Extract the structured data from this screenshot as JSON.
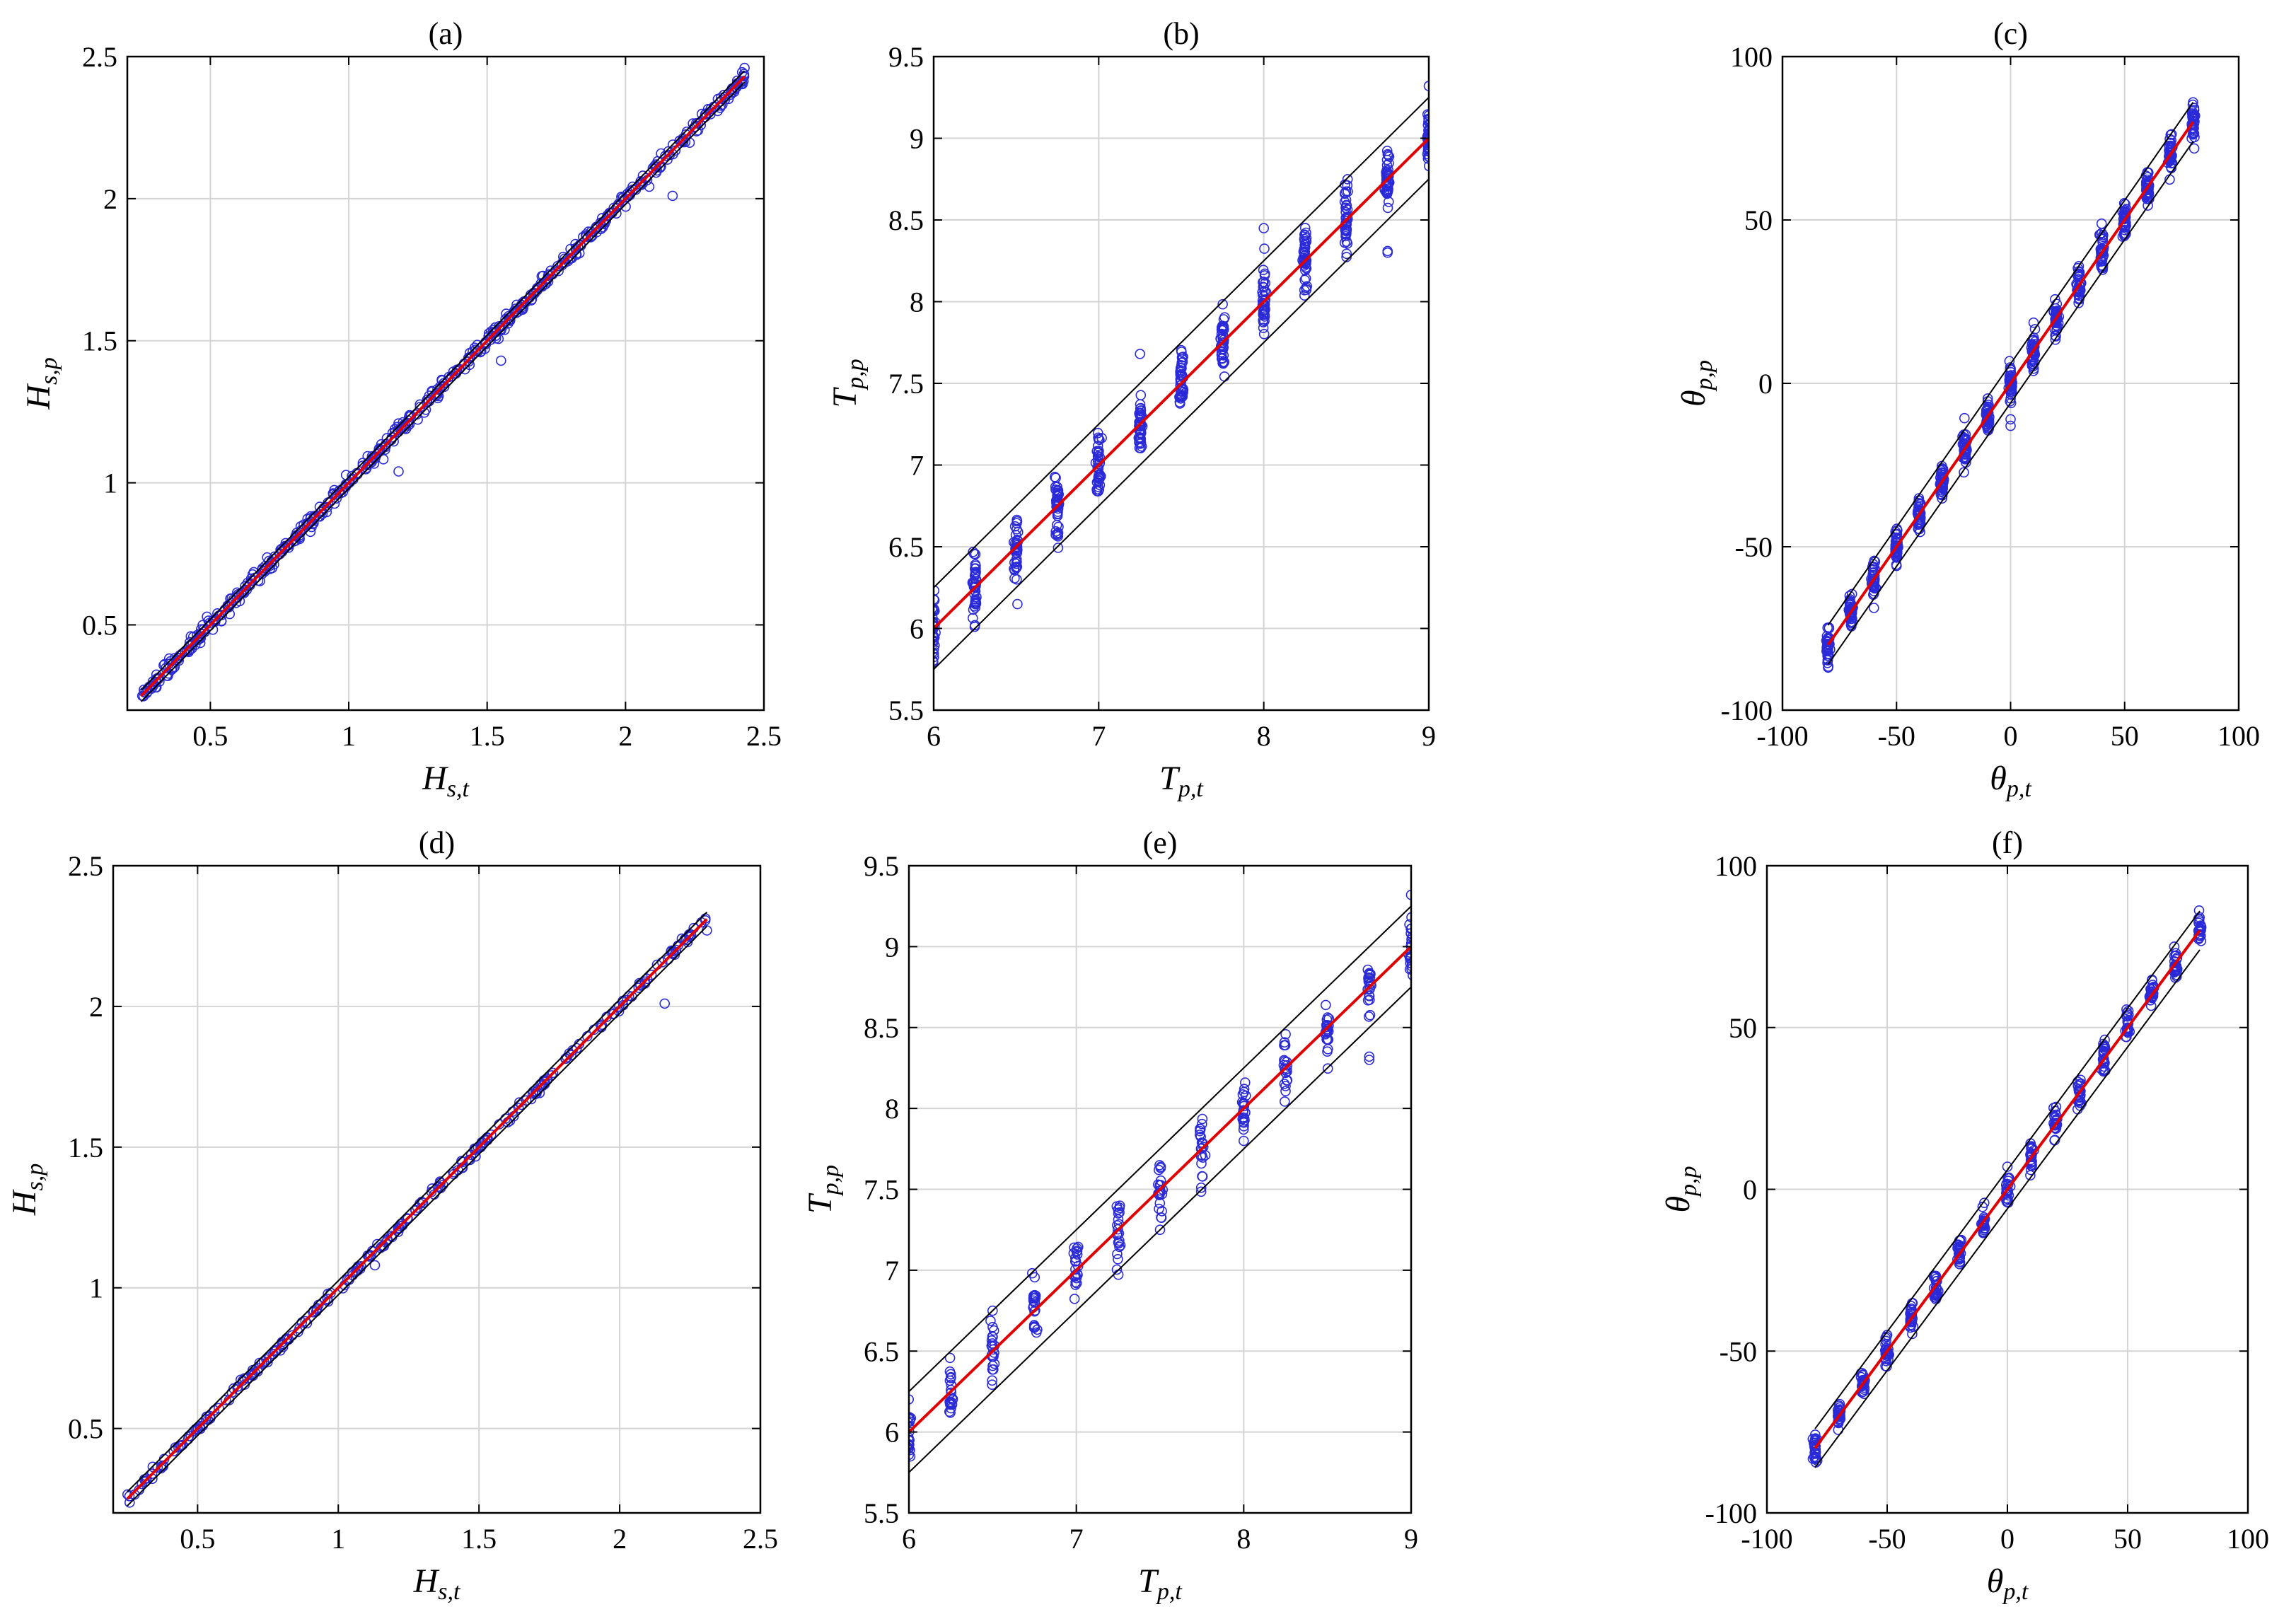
{
  "colors": {
    "scatter": "#2a2ad8",
    "fit": "#e00000",
    "bound": "#000000",
    "grid": "#d4d4d4"
  },
  "chart_data": [
    {
      "type": "scatter",
      "title": "(a)",
      "xlabel": {
        "main": "H",
        "sub": "s,t"
      },
      "ylabel": {
        "main": "H",
        "sub": "s,p"
      },
      "xlim": [
        0.2,
        2.5
      ],
      "ylim": [
        0.2,
        2.5
      ],
      "xticks": [
        0.5,
        1,
        1.5,
        2,
        2.5
      ],
      "yticks": [
        0.5,
        1,
        1.5,
        2,
        2.5
      ],
      "xticklabels": [
        "0.5",
        "1",
        "1.5",
        "2",
        "2.5"
      ],
      "yticklabels": [
        "0.5",
        "1",
        "1.5",
        "2",
        "2.5"
      ],
      "grid": true,
      "series": [
        {
          "kind": "scatter",
          "distribution": "continuous",
          "x_range": [
            0.25,
            2.43
          ],
          "spread": 0.025,
          "density": 550,
          "outliers": [
            [
              2.17,
              2.01
            ],
            [
              1.18,
              1.04
            ],
            [
              1.55,
              1.43
            ],
            [
              2.43,
              2.46
            ]
          ]
        },
        {
          "kind": "line",
          "role": "fit",
          "x": [
            0.25,
            2.43
          ],
          "y": [
            0.25,
            2.43
          ]
        },
        {
          "kind": "line",
          "role": "bound",
          "x": [
            0.25,
            2.43
          ],
          "y": [
            0.27,
            2.45
          ]
        },
        {
          "kind": "line",
          "role": "bound",
          "x": [
            0.25,
            2.43
          ],
          "y": [
            0.23,
            2.41
          ]
        }
      ]
    },
    {
      "type": "scatter",
      "title": "(b)",
      "xlabel": {
        "main": "T",
        "sub": "p,t"
      },
      "ylabel": {
        "main": "T",
        "sub": "p,p"
      },
      "xlim": [
        6,
        9
      ],
      "ylim": [
        5.5,
        9.5
      ],
      "xticks": [
        6,
        7,
        8,
        9
      ],
      "yticks": [
        5.5,
        6,
        6.5,
        7,
        7.5,
        8,
        8.5,
        9,
        9.5
      ],
      "xticklabels": [
        "6",
        "7",
        "8",
        "9"
      ],
      "yticklabels": [
        "5.5",
        "6",
        "6.5",
        "7",
        "7.5",
        "8",
        "8.5",
        "9",
        "9.5"
      ],
      "grid": true,
      "series": [
        {
          "kind": "scatter",
          "distribution": "columns",
          "columns": [
            6,
            6.25,
            6.5,
            6.75,
            7,
            7.25,
            7.5,
            7.75,
            8,
            8.25,
            8.5,
            8.75,
            9
          ],
          "spread": 0.22,
          "per_column": 40,
          "outliers": [
            [
              7.25,
              7.68
            ],
            [
              8,
              8.45
            ],
            [
              8.75,
              8.3
            ],
            [
              8.75,
              8.31
            ],
            [
              9,
              9.32
            ],
            [
              6.25,
              6.02
            ]
          ]
        },
        {
          "kind": "line",
          "role": "fit",
          "x": [
            6,
            9
          ],
          "y": [
            6,
            9
          ]
        },
        {
          "kind": "line",
          "role": "bound",
          "x": [
            6,
            9
          ],
          "y": [
            6.25,
            9.25
          ]
        },
        {
          "kind": "line",
          "role": "bound",
          "x": [
            6,
            9
          ],
          "y": [
            5.75,
            8.75
          ]
        }
      ]
    },
    {
      "type": "scatter",
      "title": "(c)",
      "xlabel": {
        "main": "θ",
        "sub": "p,t"
      },
      "ylabel": {
        "main": "θ",
        "sub": "p,p"
      },
      "xlim": [
        -100,
        100
      ],
      "ylim": [
        -100,
        100
      ],
      "xticks": [
        -100,
        -50,
        0,
        50,
        100
      ],
      "yticks": [
        -100,
        -50,
        0,
        50,
        100
      ],
      "xticklabels": [
        "-100",
        "-50",
        "0",
        "50",
        "100"
      ],
      "yticklabels": [
        "-100",
        "-50",
        "0",
        "50",
        "100"
      ],
      "grid": true,
      "series": [
        {
          "kind": "scatter",
          "distribution": "columns",
          "columns": [
            -80,
            -70,
            -60,
            -50,
            -40,
            -30,
            -20,
            -10,
            0,
            10,
            20,
            30,
            40,
            50,
            60,
            70,
            80
          ],
          "spread": 6,
          "per_column": 40,
          "outliers": [
            [
              0,
              -11
            ],
            [
              0,
              -13
            ],
            [
              -80,
              -87
            ],
            [
              80,
              86
            ]
          ]
        },
        {
          "kind": "line",
          "role": "fit",
          "x": [
            -80,
            80
          ],
          "y": [
            -80,
            80
          ]
        },
        {
          "kind": "line",
          "role": "bound",
          "x": [
            -80,
            80
          ],
          "y": [
            -74,
            86
          ]
        },
        {
          "kind": "line",
          "role": "bound",
          "x": [
            -80,
            80
          ],
          "y": [
            -86,
            74
          ]
        }
      ]
    },
    {
      "type": "scatter",
      "title": "(d)",
      "xlabel": {
        "main": "H",
        "sub": "s,t"
      },
      "ylabel": {
        "main": "H",
        "sub": "s,p"
      },
      "xlim": [
        0.2,
        2.5
      ],
      "ylim": [
        0.2,
        2.5
      ],
      "xticks": [
        0.5,
        1,
        1.5,
        2,
        2.5
      ],
      "yticks": [
        0.5,
        1,
        1.5,
        2,
        2.5
      ],
      "xticklabels": [
        "0.5",
        "1",
        "1.5",
        "2",
        "2.5"
      ],
      "yticklabels": [
        "0.5",
        "1",
        "1.5",
        "2",
        "2.5"
      ],
      "grid": true,
      "series": [
        {
          "kind": "scatter",
          "distribution": "continuous",
          "x_range": [
            0.25,
            2.31
          ],
          "spread": 0.018,
          "density": 260,
          "outliers": [
            [
              2.16,
              2.01
            ],
            [
              1.13,
              1.08
            ],
            [
              2.31,
              2.27
            ]
          ]
        },
        {
          "kind": "line",
          "role": "fit",
          "x": [
            0.25,
            2.31
          ],
          "y": [
            0.25,
            2.31
          ]
        },
        {
          "kind": "line",
          "role": "bound",
          "x": [
            0.25,
            2.31
          ],
          "y": [
            0.275,
            2.335
          ]
        },
        {
          "kind": "line",
          "role": "bound",
          "x": [
            0.25,
            2.31
          ],
          "y": [
            0.225,
            2.285
          ]
        }
      ]
    },
    {
      "type": "scatter",
      "title": "(e)",
      "xlabel": {
        "main": "T",
        "sub": "p,t"
      },
      "ylabel": {
        "main": "T",
        "sub": "p,p"
      },
      "xlim": [
        6,
        9
      ],
      "ylim": [
        5.5,
        9.5
      ],
      "xticks": [
        6,
        7,
        8,
        9
      ],
      "yticks": [
        5.5,
        6,
        6.5,
        7,
        7.5,
        8,
        8.5,
        9,
        9.5
      ],
      "xticklabels": [
        "6",
        "7",
        "8",
        "9"
      ],
      "yticklabels": [
        "5.5",
        "6",
        "6.5",
        "7",
        "7.5",
        "8",
        "8.5",
        "9",
        "9.5"
      ],
      "grid": true,
      "series": [
        {
          "kind": "scatter",
          "distribution": "columns",
          "columns": [
            6,
            6.25,
            6.5,
            6.75,
            7,
            7.25,
            7.5,
            7.75,
            8,
            8.25,
            8.5,
            8.75,
            9
          ],
          "spread": 0.22,
          "per_column": 22,
          "outliers": [
            [
              6.5,
              6.75
            ],
            [
              8.75,
              8.3
            ],
            [
              8.75,
              8.32
            ],
            [
              9,
              9.32
            ],
            [
              7.5,
              7.25
            ]
          ]
        },
        {
          "kind": "line",
          "role": "fit",
          "x": [
            6,
            9
          ],
          "y": [
            6,
            9
          ]
        },
        {
          "kind": "line",
          "role": "bound",
          "x": [
            6,
            9
          ],
          "y": [
            6.25,
            9.25
          ]
        },
        {
          "kind": "line",
          "role": "bound",
          "x": [
            6,
            9
          ],
          "y": [
            5.75,
            8.75
          ]
        }
      ]
    },
    {
      "type": "scatter",
      "title": "(f)",
      "xlabel": {
        "main": "θ",
        "sub": "p,t"
      },
      "ylabel": {
        "main": "θ",
        "sub": "p,p"
      },
      "xlim": [
        -100,
        100
      ],
      "ylim": [
        -100,
        100
      ],
      "xticks": [
        -100,
        -50,
        0,
        50,
        100
      ],
      "yticks": [
        -100,
        -50,
        0,
        50,
        100
      ],
      "xticklabels": [
        "-100",
        "-50",
        "0",
        "50",
        "100"
      ],
      "yticklabels": [
        "-100",
        "-50",
        "0",
        "50",
        "100"
      ],
      "grid": true,
      "series": [
        {
          "kind": "scatter",
          "distribution": "columns",
          "columns": [
            -80,
            -70,
            -60,
            -50,
            -40,
            -30,
            -20,
            -10,
            0,
            10,
            20,
            30,
            40,
            50,
            60,
            70,
            80
          ],
          "spread": 5.5,
          "per_column": 26,
          "outliers": [
            [
              -50,
              -45
            ],
            [
              0,
              7
            ]
          ]
        },
        {
          "kind": "line",
          "role": "fit",
          "x": [
            -80,
            80
          ],
          "y": [
            -80,
            80
          ]
        },
        {
          "kind": "line",
          "role": "bound",
          "x": [
            -80,
            80
          ],
          "y": [
            -74,
            86
          ]
        },
        {
          "kind": "line",
          "role": "bound",
          "x": [
            -80,
            80
          ],
          "y": [
            -86,
            74
          ]
        }
      ]
    }
  ]
}
